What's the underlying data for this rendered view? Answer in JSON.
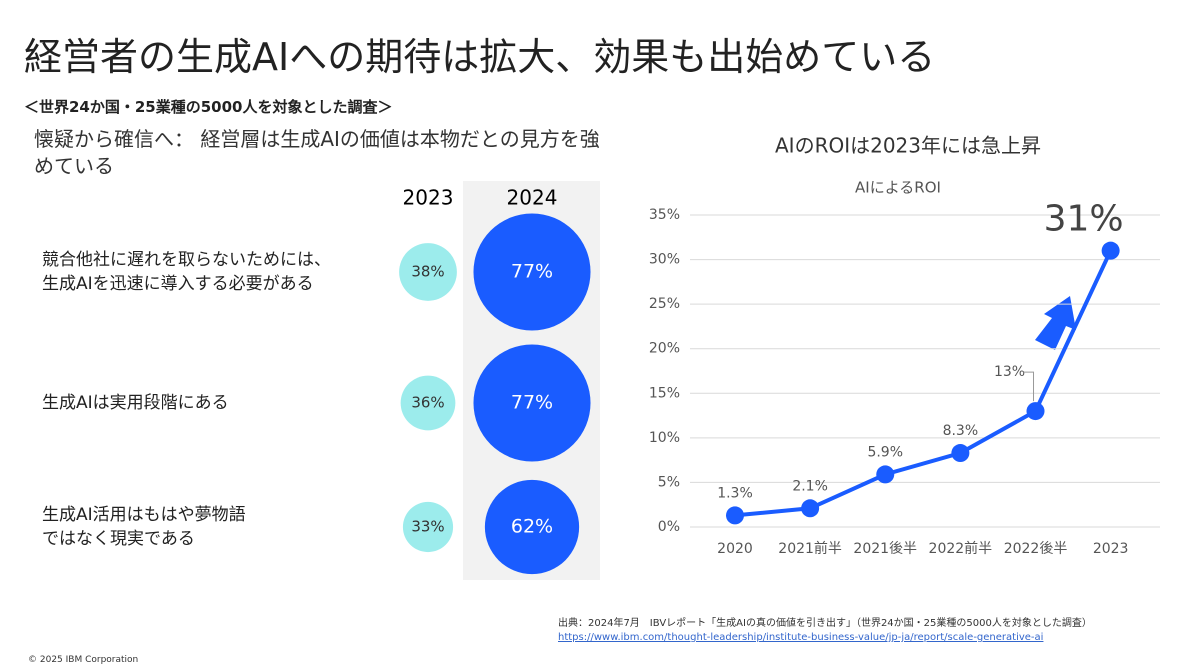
{
  "title": "経営者の生成AIへの期待は拡大、効果も出始めている",
  "subtitle": "＜世界24か国・25業種の5000人を対象とした調査＞",
  "chart_data": [
    {
      "type": "bubble",
      "title": "懐疑から確信へ： 経営層は生成AIの価値は本物だとの見方を強めている",
      "categories": [
        "競合他社に遅れを取らないためには、\n生成AIを迅速に導入する必要がある",
        "生成AIは実用段階にある",
        "生成AI活用はもはや夢物語\nではなく現実である"
      ],
      "series": [
        {
          "name": "2023",
          "color": "#9cecec",
          "values": [
            38,
            36,
            33
          ],
          "value_labels": [
            "38%",
            "36%",
            "33%"
          ]
        },
        {
          "name": "2024",
          "color": "#1a5cff",
          "values": [
            77,
            77,
            62
          ],
          "value_labels": [
            "77%",
            "77%",
            "62%"
          ]
        }
      ]
    },
    {
      "type": "line",
      "title": "AIのROIは2023年には急上昇",
      "subtitle": "AIによるROI",
      "categories": [
        "2020",
        "2021前半",
        "2021後半",
        "2022前半",
        "2022後半",
        "2023"
      ],
      "values": [
        1.3,
        2.1,
        5.9,
        8.3,
        13,
        31
      ],
      "value_labels": [
        "1.3%",
        "2.1%",
        "5.9%",
        "8.3%",
        "13%",
        "31%"
      ],
      "color": "#1a5cff",
      "ylim": [
        0,
        35
      ],
      "yticks": [
        {
          "value": 0,
          "label": "0%"
        },
        {
          "value": 5,
          "label": "5%"
        },
        {
          "value": 10,
          "label": "10%"
        },
        {
          "value": 15,
          "label": "15%"
        },
        {
          "value": 20,
          "label": "20%"
        },
        {
          "value": 25,
          "label": "25%"
        },
        {
          "value": 30,
          "label": "30%"
        },
        {
          "value": 35,
          "label": "35%"
        }
      ],
      "grid": true
    }
  ],
  "source": "出典：2024年7月　IBVレポート「生成AIの真の価値を引き出す」（世界24か国・25業種の5000人を対象とした調査）",
  "url": "https://www.ibm.com/thought-leadership/institute-business-value/jp-ja/report/scale-generative-ai",
  "copyright": "© 2025 IBM Corporation"
}
